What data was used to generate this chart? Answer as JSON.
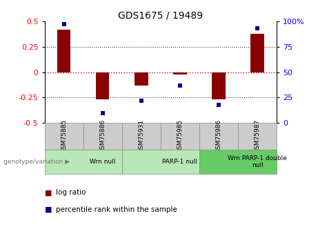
{
  "title": "GDS1675 / 19489",
  "samples": [
    "GSM75885",
    "GSM75886",
    "GSM75931",
    "GSM75985",
    "GSM75986",
    "GSM75987"
  ],
  "log_ratio": [
    0.42,
    -0.27,
    -0.13,
    -0.02,
    -0.27,
    0.38
  ],
  "percentile_rank": [
    97,
    10,
    22,
    37,
    18,
    93
  ],
  "groups": [
    {
      "label": "Wrn null",
      "span": [
        0,
        2
      ],
      "color": "#b8e8b8"
    },
    {
      "label": "PARP-1 null",
      "span": [
        2,
        4
      ],
      "color": "#b8e8b8"
    },
    {
      "label": "Wrn PARP-1 double\nnull",
      "span": [
        4,
        6
      ],
      "color": "#66cc66"
    }
  ],
  "bar_color": "#8B0000",
  "dot_color": "#00008B",
  "ylim_left": [
    -0.5,
    0.5
  ],
  "ylim_right": [
    0,
    100
  ],
  "yticks_left": [
    -0.5,
    -0.25,
    0.0,
    0.25,
    0.5
  ],
  "yticks_right": [
    0,
    25,
    50,
    75,
    100
  ],
  "hline_zero_color": "#CC0000",
  "title_fontsize": 10,
  "bar_width": 0.35,
  "dot_size": 5,
  "genotype_label": "genotype/variation",
  "legend_log_ratio": "log ratio",
  "legend_percentile": "percentile rank within the sample",
  "sample_cell_color": "#CCCCCC",
  "grid_color": "#333333"
}
